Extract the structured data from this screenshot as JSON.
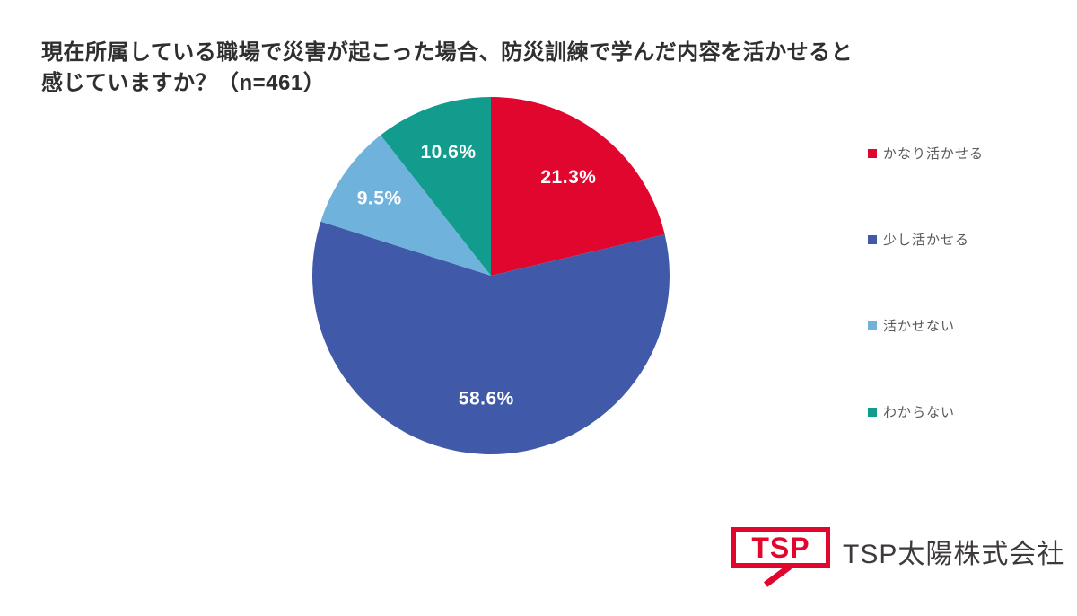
{
  "title": {
    "line1": "現在所属している職場で災害が起こった場合、防災訓練で学んだ内容を活かせると",
    "line2": "感じていますか？（n=461）"
  },
  "chart_data": {
    "type": "pie",
    "title": "現在所属している職場で災害が起こった場合、防災訓練で学んだ内容を活かせると感じていますか？（n=461）",
    "n": 461,
    "unit": "%",
    "start_angle_deg": 0,
    "direction": "clockwise",
    "legend_position": "right",
    "value_label_color": "#FFFFFF",
    "slices": [
      {
        "label": "かなり活かせる",
        "value": 21.3,
        "display": "21.3%",
        "color": "#E1062E"
      },
      {
        "label": "少し活かせる",
        "value": 58.6,
        "display": "58.6%",
        "color": "#4059A8"
      },
      {
        "label": "活かせない",
        "value": 9.5,
        "display": "9.5%",
        "color": "#6FB2DC"
      },
      {
        "label": "わからない",
        "value": 10.6,
        "display": "10.6%",
        "color": "#119C8E"
      }
    ]
  },
  "footer": {
    "logo_text": "TSP",
    "company_name": "TSP太陽株式会社",
    "brand_color": "#E1062E",
    "company_color": "#3E3A39"
  }
}
